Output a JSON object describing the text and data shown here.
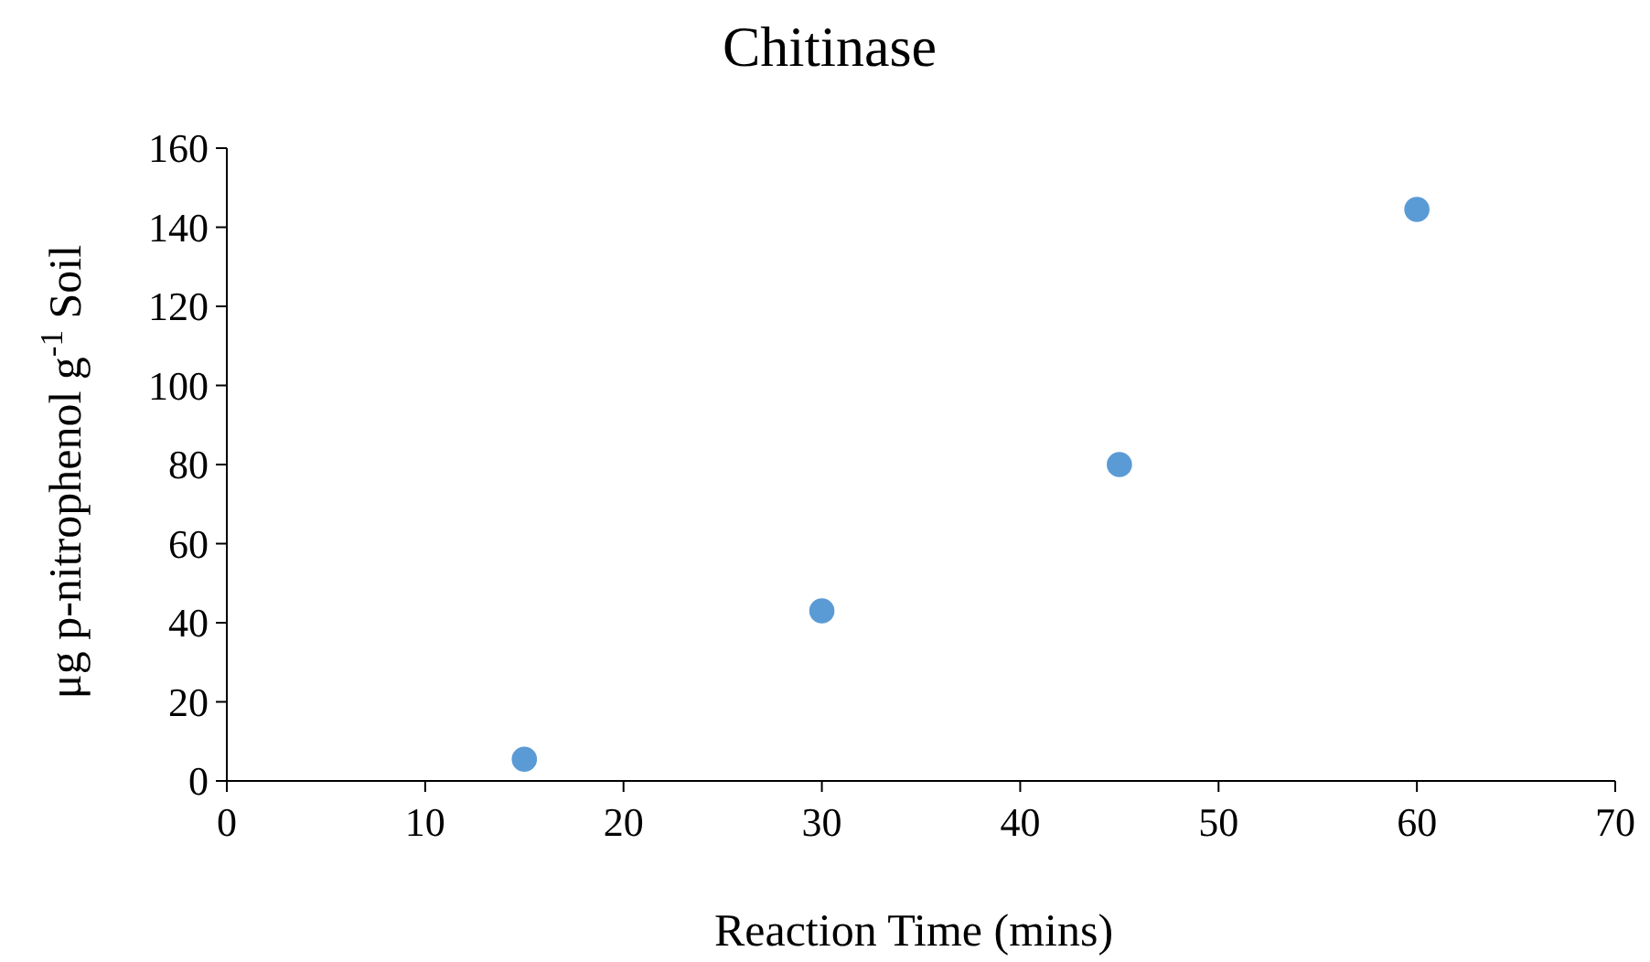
{
  "chart_data": {
    "type": "scatter",
    "title": "Chitinase",
    "xlabel": "Reaction Time (mins)",
    "ylabel": "μg p-nitrophenol g$^{-1}$ Soil",
    "x": [
      15,
      30,
      45,
      60
    ],
    "series": [
      {
        "color": "#5b9bd5",
        "values": [
          5.5,
          43,
          80,
          144.5
        ]
      }
    ],
    "xlim": [
      0,
      70
    ],
    "xticks": [
      0,
      10,
      20,
      30,
      40,
      50,
      60,
      70
    ],
    "ylim": [
      0,
      160
    ],
    "yticks": [
      0,
      20,
      40,
      60,
      80,
      100,
      120,
      140,
      160
    ],
    "grid": false,
    "marker": "circle"
  }
}
